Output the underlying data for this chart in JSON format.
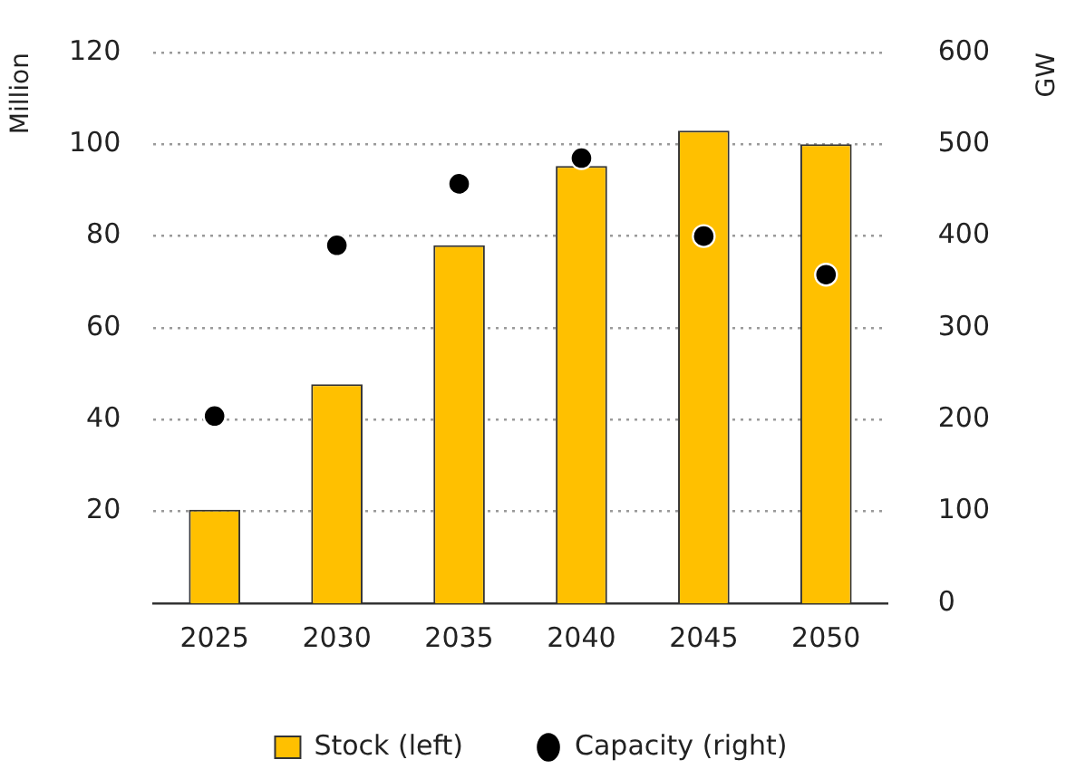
{
  "chart_data": {
    "type": "bar",
    "categories": [
      "2025",
      "2030",
      "2035",
      "2040",
      "2045",
      "2050"
    ],
    "series": [
      {
        "name": "Stock (left)",
        "color": "#ffc000",
        "values": [
          20.4,
          47.7,
          78,
          95.3,
          103,
          100
        ]
      },
      {
        "name": "Capacity (right)",
        "type": "scatter",
        "axis": "y2",
        "color": "#000000",
        "values": [
          204,
          390,
          457,
          485,
          400,
          358
        ]
      }
    ],
    "ylabel": "Million",
    "y2label": "GW",
    "ylim": [
      0,
      120
    ],
    "yticks": [
      20,
      40,
      60,
      80,
      100,
      120
    ],
    "y2lim": [
      0,
      600
    ],
    "y2ticks": [
      0,
      100,
      200,
      300,
      400,
      500,
      600
    ],
    "grid": "y",
    "legend": "bottom",
    "marker": "circle"
  }
}
